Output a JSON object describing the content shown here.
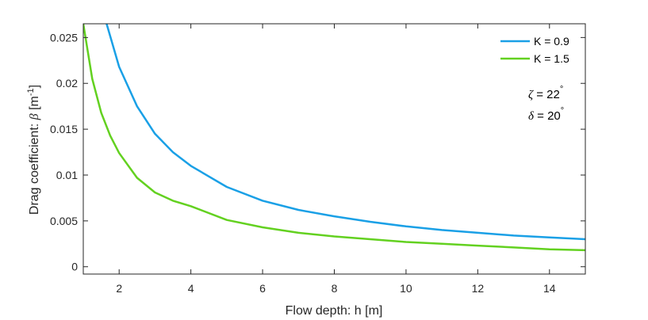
{
  "chart_data": {
    "type": "line",
    "xlabel": "Flow depth: h [m]",
    "ylabel": {
      "prefix": "Drag coefficient: ",
      "symbol": "β",
      "unit_open": " [m",
      "unit_exp": "-1",
      "unit_close": "]"
    },
    "xlim": [
      1,
      15
    ],
    "ylim": [
      -0.0008,
      0.0265
    ],
    "xticks": [
      2,
      4,
      6,
      8,
      10,
      12,
      14
    ],
    "yticks": [
      0,
      0.005,
      0.01,
      0.015,
      0.02,
      0.025
    ],
    "xtick_labels": [
      "2",
      "4",
      "6",
      "8",
      "10",
      "12",
      "14"
    ],
    "ytick_labels": [
      "0",
      "0.005",
      "0.01",
      "0.015",
      "0.02",
      "0.025"
    ],
    "grid": false,
    "legend_position": "top-right",
    "series": [
      {
        "name": "K = 0.9",
        "color": "#1aa0e6",
        "x": [
          1.65,
          2,
          2.5,
          3,
          3.5,
          4,
          5,
          6,
          7,
          8,
          9,
          10,
          11,
          12,
          13,
          14,
          15
        ],
        "y": [
          0.0265,
          0.0218,
          0.0175,
          0.0145,
          0.0125,
          0.011,
          0.0087,
          0.0072,
          0.0062,
          0.0055,
          0.0049,
          0.0044,
          0.004,
          0.0037,
          0.0034,
          0.0032,
          0.003
        ]
      },
      {
        "name": "K = 1.5",
        "color": "#63d120",
        "x": [
          1,
          1.25,
          1.5,
          1.75,
          2,
          2.5,
          3,
          3.5,
          4,
          5,
          6,
          7,
          8,
          9,
          10,
          11,
          12,
          13,
          14,
          15
        ],
        "y": [
          0.0265,
          0.0205,
          0.0168,
          0.0143,
          0.0124,
          0.0097,
          0.0081,
          0.0072,
          0.0066,
          0.0051,
          0.0043,
          0.0037,
          0.0033,
          0.003,
          0.0027,
          0.0025,
          0.0023,
          0.0021,
          0.0019,
          0.0018
        ]
      }
    ],
    "annotations": [
      {
        "symbol": "ζ",
        "value": " = 22",
        "sup": "°"
      },
      {
        "symbol": "δ",
        "value": " = 20",
        "sup": "°"
      }
    ]
  }
}
